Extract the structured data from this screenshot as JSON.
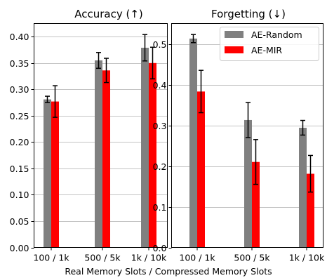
{
  "xlabel": "Real Memory Slots / Compressed Memory Slots",
  "legend": [
    {
      "label": "AE-Random",
      "color": "#808080"
    },
    {
      "label": "AE-MIR",
      "color": "#ff0000"
    }
  ],
  "chart_data": [
    {
      "type": "bar",
      "title": "Accuracy (↑)",
      "categories": [
        "100 / 1k",
        "500 / 5k",
        "1k / 10k"
      ],
      "ylim": [
        0,
        0.425
      ],
      "yticks": [
        0.0,
        0.05,
        0.1,
        0.15,
        0.2,
        0.25,
        0.3,
        0.35,
        0.4
      ],
      "ytick_labels": [
        "0.00",
        "0.05",
        "0.10",
        "0.15",
        "0.20",
        "0.25",
        "0.30",
        "0.35",
        "0.40"
      ],
      "grid": true,
      "series": [
        {
          "name": "AE-Random",
          "color": "#808080",
          "values": [
            0.281,
            0.355,
            0.379
          ],
          "errors": [
            0.006,
            0.015,
            0.025
          ]
        },
        {
          "name": "AE-MIR",
          "color": "#ff0000",
          "values": [
            0.277,
            0.336,
            0.35
          ],
          "errors": [
            0.03,
            0.023,
            0.03
          ]
        }
      ]
    },
    {
      "type": "bar",
      "title": "Forgetting (↓)",
      "categories": [
        "100 / 1k",
        "500 / 5k",
        "1k / 10k"
      ],
      "ylim": [
        0,
        0.55
      ],
      "yticks": [
        0.0,
        0.1,
        0.2,
        0.3,
        0.4,
        0.5
      ],
      "ytick_labels": [
        "0.0",
        "0.1",
        "0.2",
        "0.3",
        "0.4",
        "0.5"
      ],
      "grid": true,
      "legend_position": "top-right",
      "series": [
        {
          "name": "AE-Random",
          "color": "#808080",
          "values": [
            0.513,
            0.313,
            0.294
          ],
          "errors": [
            0.01,
            0.043,
            0.018
          ]
        },
        {
          "name": "AE-MIR",
          "color": "#ff0000",
          "values": [
            0.383,
            0.21,
            0.181
          ],
          "errors": [
            0.052,
            0.055,
            0.045
          ]
        }
      ]
    }
  ]
}
